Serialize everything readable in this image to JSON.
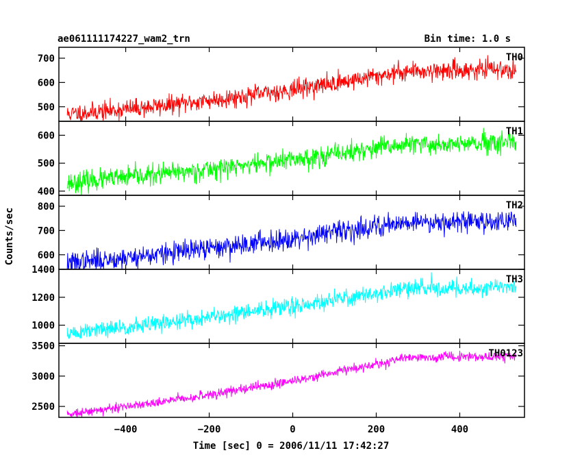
{
  "header": {
    "title": "ae061111174227_wam2_trn",
    "bin_time": "Bin time: 1.0 s"
  },
  "chart_data": [
    {
      "type": "line",
      "series_label": "TH0",
      "color": "#ff0000",
      "x_range": [
        -540,
        535
      ],
      "ylim": [
        440,
        745
      ],
      "yticks": [
        500,
        600,
        700
      ],
      "start": 470,
      "mid": 570,
      "end": 655,
      "amp": 35,
      "seed": 11
    },
    {
      "type": "line",
      "series_label": "TH1",
      "color": "#00ff00",
      "x_range": [
        -540,
        535
      ],
      "ylim": [
        385,
        650
      ],
      "yticks": [
        400,
        500,
        600
      ],
      "start": 430,
      "mid": 530,
      "end": 570,
      "amp": 33,
      "seed": 23
    },
    {
      "type": "line",
      "series_label": "TH2",
      "color": "#0000ff",
      "x_range": [
        -540,
        535
      ],
      "ylim": [
        540,
        845
      ],
      "yticks": [
        600,
        700,
        800
      ],
      "start": 565,
      "mid": 690,
      "end": 740,
      "amp": 40,
      "seed": 37
    },
    {
      "type": "line",
      "series_label": "TH3",
      "color": "#00ffff",
      "x_range": [
        -540,
        535
      ],
      "ylim": [
        870,
        1400
      ],
      "yticks": [
        1000,
        1200,
        1400
      ],
      "start": 940,
      "mid": 1180,
      "end": 1270,
      "amp": 55,
      "seed": 51
    },
    {
      "type": "line",
      "series_label": "TH0123",
      "color": "#ff00ff",
      "x_range": [
        -540,
        535
      ],
      "ylim": [
        2320,
        3540
      ],
      "yticks": [
        2500,
        3000,
        3500
      ],
      "start": 2380,
      "mid": 3000,
      "end": 3330,
      "amp": 70,
      "seed": 73
    }
  ],
  "x_axis": {
    "xlim": [
      -560,
      555
    ],
    "ticks": [
      -400,
      -200,
      0,
      200,
      400
    ],
    "tick_labels": [
      "−400",
      "−200",
      "0",
      "200",
      "400"
    ],
    "label": "Time [sec] 0 = 2006/11/11 17:42:27"
  },
  "y_axis": {
    "label": "Counts/sec"
  }
}
